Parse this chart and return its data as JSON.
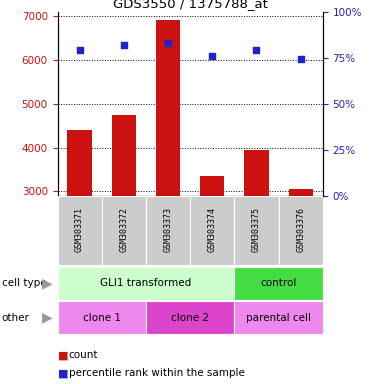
{
  "title": "GDS3550 / 1375788_at",
  "samples": [
    "GSM303371",
    "GSM303372",
    "GSM303373",
    "GSM303374",
    "GSM303375",
    "GSM303376"
  ],
  "counts": [
    4400,
    4750,
    6900,
    3350,
    3950,
    3050
  ],
  "percentiles": [
    79,
    82,
    83,
    76,
    79,
    74
  ],
  "ylim_left": [
    2900,
    7100
  ],
  "ylim_right": [
    0,
    100
  ],
  "yticks_left": [
    3000,
    4000,
    5000,
    6000,
    7000
  ],
  "yticks_right": [
    0,
    25,
    50,
    75,
    100
  ],
  "bar_color": "#cc1111",
  "dot_color": "#2222cc",
  "cell_type_labels": [
    "GLI1 transformed",
    "control"
  ],
  "cell_type_color_light": "#ccffcc",
  "cell_type_color_dark": "#44dd44",
  "other_labels": [
    "clone 1",
    "clone 2",
    "parental cell"
  ],
  "other_color_light": "#ee88ee",
  "other_color_dark": "#dd44cc",
  "tick_bg_color": "#cccccc",
  "legend_count_label": "count",
  "legend_pct_label": "percentile rank within the sample"
}
